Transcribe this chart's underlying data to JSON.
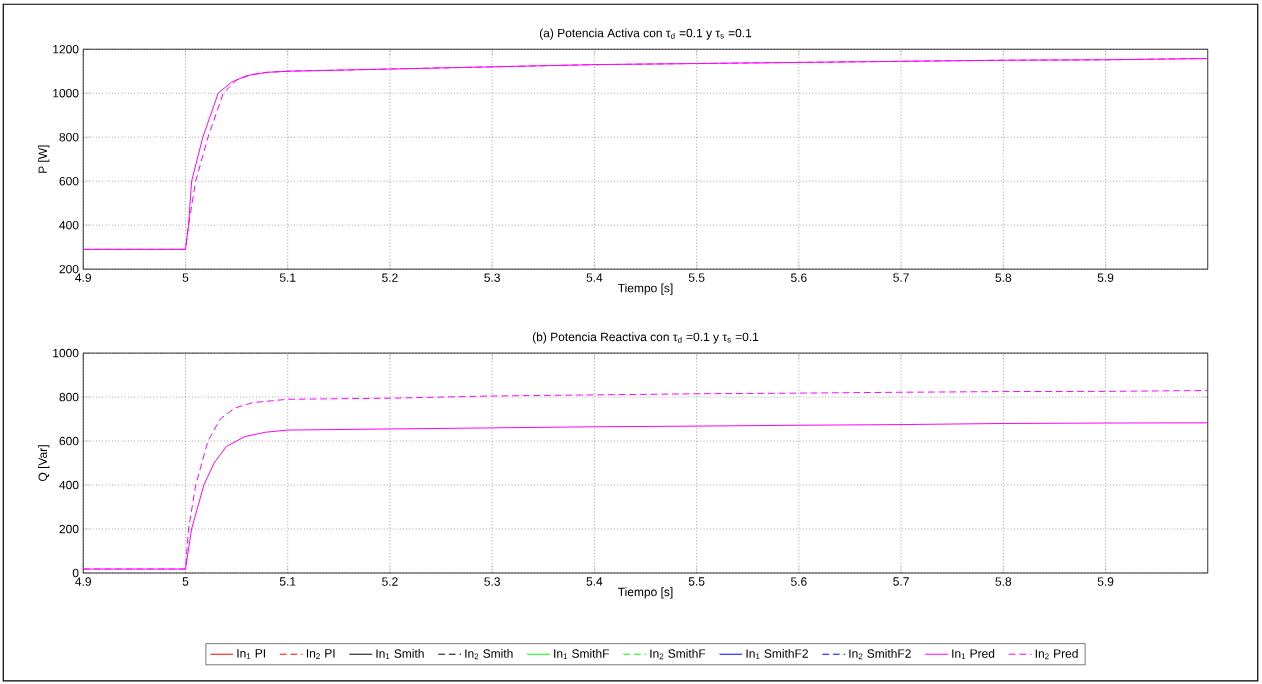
{
  "chart_data": [
    {
      "type": "line",
      "title": "(a) Potencia Activa con τ$_{d}$ =0.1 y τ$_{s}$ =0.1",
      "xlabel": "Tiempo [s]",
      "ylabel": "P [W]",
      "xlim": [
        4.9,
        6.0
      ],
      "xticks": [
        4.9,
        5,
        5.1,
        5.2,
        5.3,
        5.4,
        5.5,
        5.6,
        5.7,
        5.8,
        5.9
      ],
      "ylim": [
        200,
        1200
      ],
      "yticks": [
        200,
        400,
        600,
        800,
        1000,
        1200
      ],
      "grid": true,
      "series": [
        {
          "color": "#ff00ff",
          "line_style": "dashed",
          "x": [
            4.9,
            5.0,
            5.003,
            5.01,
            5.022,
            5.037,
            5.05,
            5.065,
            5.08,
            5.1,
            5.2,
            5.3,
            5.4,
            5.5,
            5.6,
            5.7,
            5.8,
            5.9,
            6.0
          ],
          "values": [
            290,
            290,
            400,
            600,
            800,
            1000,
            1060,
            1085,
            1095,
            1100,
            1110,
            1120,
            1130,
            1135,
            1140,
            1145,
            1150,
            1152,
            1158
          ]
        },
        {
          "color": "#ff00ff",
          "line_style": "solid",
          "x": [
            4.9,
            5.0,
            5.003,
            5.006,
            5.017,
            5.032,
            5.045,
            5.06,
            5.08,
            5.1,
            5.2,
            5.3,
            5.4,
            5.5,
            5.6,
            5.7,
            5.8,
            5.9,
            6.0
          ],
          "values": [
            290,
            290,
            400,
            600,
            800,
            1000,
            1050,
            1080,
            1095,
            1100,
            1110,
            1120,
            1130,
            1135,
            1140,
            1145,
            1150,
            1152,
            1158
          ]
        }
      ]
    },
    {
      "type": "line",
      "title": "(b) Potencia Reactiva con τ$_{d}$ =0.1 y τ$_{s}$ =0.1",
      "xlabel": "Tiempo [s]",
      "ylabel": "Q [Var]",
      "xlim": [
        4.9,
        6.0
      ],
      "xticks": [
        4.9,
        5,
        5.1,
        5.2,
        5.3,
        5.4,
        5.5,
        5.6,
        5.7,
        5.8,
        5.9
      ],
      "ylim": [
        0,
        1000
      ],
      "yticks": [
        0,
        200,
        400,
        600,
        800,
        1000
      ],
      "grid": true,
      "legend": "bottom",
      "series": [
        {
          "name": "In$_{1}$ PI",
          "color": "#ff0000",
          "line_style": "solid"
        },
        {
          "name": "In$_{2}$ PI",
          "color": "#ff0000",
          "line_style": "dashed"
        },
        {
          "name": "In$_{1}$ Smith",
          "color": "#000000",
          "line_style": "solid"
        },
        {
          "name": "In$_{2}$ Smith",
          "color": "#000000",
          "line_style": "dashed"
        },
        {
          "name": "In$_{1}$ SmithF",
          "color": "#00ff00",
          "line_style": "solid"
        },
        {
          "name": "In$_{2}$ SmithF",
          "color": "#00ff00",
          "line_style": "dashed"
        },
        {
          "name": "In$_{1}$ SmithF2",
          "color": "#0000ff",
          "line_style": "solid"
        },
        {
          "name": "In$_{2}$ SmithF2",
          "color": "#0000ff",
          "line_style": "dashed"
        },
        {
          "name": "In$_{1}$ Pred",
          "color": "#ff00ff",
          "line_style": "solid",
          "x": [
            4.9,
            5.0,
            5.006,
            5.018,
            5.028,
            5.04,
            5.058,
            5.078,
            5.1,
            5.2,
            5.3,
            5.4,
            5.5,
            5.6,
            5.7,
            5.8,
            5.9,
            6.0
          ],
          "values": [
            18,
            18,
            200,
            400,
            500,
            575,
            620,
            640,
            650,
            655,
            660,
            665,
            668,
            672,
            675,
            680,
            682,
            683
          ]
        },
        {
          "name": "In$_{2}$ Pred",
          "color": "#ff00ff",
          "line_style": "dashed",
          "x": [
            4.9,
            5.0,
            5.003,
            5.01,
            5.022,
            5.034,
            5.048,
            5.066,
            5.1,
            5.2,
            5.3,
            5.4,
            5.5,
            5.6,
            5.7,
            5.8,
            5.9,
            6.0
          ],
          "values": [
            18,
            18,
            200,
            400,
            600,
            700,
            750,
            775,
            790,
            795,
            805,
            810,
            815,
            818,
            822,
            825,
            826,
            830
          ]
        }
      ]
    }
  ]
}
